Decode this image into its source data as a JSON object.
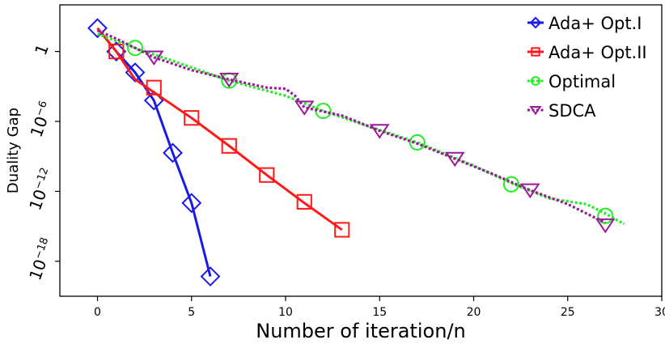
{
  "chart_data": {
    "type": "line",
    "xlabel": "Number of iteration/n",
    "ylabel": "Duality Gap",
    "xlim": [
      -2,
      30
    ],
    "ylim_log10": [
      -21,
      4
    ],
    "x_ticks": [
      0,
      5,
      10,
      15,
      20,
      25,
      30
    ],
    "y_ticks": [
      {
        "value": 1,
        "base": "1",
        "exp": ""
      },
      {
        "value": 1e-06,
        "base": "10",
        "exp": "−6"
      },
      {
        "value": 1e-12,
        "base": "10",
        "exp": "−12"
      },
      {
        "value": 1e-18,
        "base": "10",
        "exp": "−18"
      }
    ],
    "legend_position": "top-right",
    "series": [
      {
        "name": "Ada+ Opt.I",
        "color": "#1a1ae6",
        "line": "solid",
        "marker": "diamond",
        "curve": [
          [
            0,
            2
          ],
          [
            1,
            0
          ],
          [
            2,
            -1.8
          ],
          [
            3,
            -4.2
          ],
          [
            4,
            -8.7
          ],
          [
            5,
            -13
          ],
          [
            6,
            -19.3
          ]
        ],
        "markers": [
          [
            0,
            2
          ],
          [
            1,
            0
          ],
          [
            2,
            -1.8
          ],
          [
            3,
            -4.2
          ],
          [
            4,
            -8.7
          ],
          [
            5,
            -13
          ],
          [
            6,
            -19.3
          ]
        ]
      },
      {
        "name": "Ada+ Opt.II",
        "color": "#ff1a1a",
        "line": "solid",
        "marker": "square",
        "curve": [
          [
            0,
            2
          ],
          [
            1,
            0
          ],
          [
            2,
            -2.4
          ],
          [
            3,
            -3.5
          ],
          [
            5,
            -5.7
          ],
          [
            7,
            -8.1
          ],
          [
            9,
            -10.6
          ],
          [
            11,
            -13
          ],
          [
            13,
            -15.3
          ]
        ],
        "markers": [
          [
            1,
            0
          ],
          [
            3,
            -3.1
          ],
          [
            5,
            -5.7
          ],
          [
            7,
            -8.1
          ],
          [
            9,
            -10.6
          ],
          [
            11,
            -12.9
          ],
          [
            13,
            -15.3
          ]
        ]
      },
      {
        "name": "Optimal",
        "color": "#22ee22",
        "line": "dotted",
        "marker": "circle",
        "curve": [
          [
            0,
            1.5
          ],
          [
            1,
            0.9
          ],
          [
            2,
            0.3
          ],
          [
            4,
            -0.8
          ],
          [
            7,
            -2.5
          ],
          [
            10,
            -3.8
          ],
          [
            12,
            -5.1
          ],
          [
            14,
            -6.2
          ],
          [
            17,
            -7.8
          ],
          [
            20,
            -9.8
          ],
          [
            22,
            -11.3
          ],
          [
            24,
            -12.6
          ],
          [
            26,
            -13.1
          ],
          [
            27,
            -13.9
          ],
          [
            28,
            -14.8
          ]
        ],
        "markers": [
          [
            2,
            0.3
          ],
          [
            7,
            -2.5
          ],
          [
            12,
            -5.1
          ],
          [
            17,
            -7.8
          ],
          [
            22,
            -11.4
          ],
          [
            27,
            -14.1
          ]
        ]
      },
      {
        "name": "SDCA",
        "color": "#991a99",
        "line": "dotted",
        "marker": "triangle-down",
        "curve": [
          [
            0,
            1.8
          ],
          [
            1,
            1.1
          ],
          [
            3,
            -0.5
          ],
          [
            5,
            -1.6
          ],
          [
            7,
            -2.4
          ],
          [
            9,
            -3.1
          ],
          [
            10,
            -3.2
          ],
          [
            10.5,
            -3.8
          ],
          [
            11,
            -4.8
          ],
          [
            13,
            -5.5
          ],
          [
            15,
            -6.8
          ],
          [
            17,
            -7.9
          ],
          [
            19,
            -9.2
          ],
          [
            21,
            -10.5
          ],
          [
            23,
            -11.9
          ],
          [
            25,
            -13.1
          ],
          [
            27,
            -14.7
          ]
        ],
        "markers": [
          [
            3,
            -0.5
          ],
          [
            7,
            -2.4
          ],
          [
            11,
            -4.8
          ],
          [
            15,
            -6.8
          ],
          [
            19,
            -9.2
          ],
          [
            23,
            -11.9
          ],
          [
            27,
            -14.9
          ]
        ]
      }
    ]
  }
}
